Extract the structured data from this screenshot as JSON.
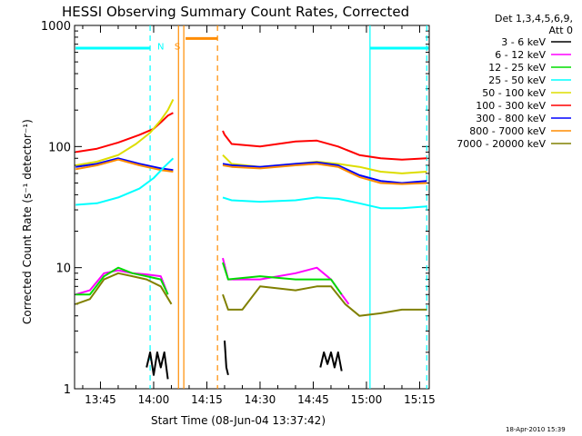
{
  "chart_data": {
    "type": "line",
    "title": "HESSI Observing Summary Count Rates, Corrected",
    "xlabel": "Start Time (08-Jun-04 13:37:42)",
    "ylabel": "Corrected Count Rate (s⁻¹ detector⁻¹)",
    "x_tick_labels": [
      "13:45",
      "14:00",
      "14:15",
      "14:30",
      "14:45",
      "15:00",
      "15:15"
    ],
    "x_ticks_min": [
      45,
      60,
      75,
      90,
      105,
      120,
      135
    ],
    "xlim_min": [
      37.7,
      137.7
    ],
    "y_scale": "log",
    "ylim": [
      1,
      1000
    ],
    "y_tick_labels": [
      "1",
      "10",
      "100",
      "1000"
    ],
    "y_ticks": [
      1,
      10,
      100,
      1000
    ],
    "legend": {
      "placement": "right",
      "header": [
        "Det 1,3,4,5,6,9,",
        "Att 0"
      ],
      "entries": [
        {
          "label": "3 - 6 keV",
          "color": "#000000"
        },
        {
          "label": "6 - 12 keV",
          "color": "#ff00ff"
        },
        {
          "label": "12 - 25 keV",
          "color": "#00dd00"
        },
        {
          "label": "25 - 50 keV",
          "color": "#00ffff"
        },
        {
          "label": "50 - 100 keV",
          "color": "#dddd00"
        },
        {
          "label": "100 - 300 keV",
          "color": "#ff0000"
        },
        {
          "label": "300 - 800 keV",
          "color": "#0000ff"
        },
        {
          "label": "800 - 7000 keV",
          "color": "#ff8c00"
        },
        {
          "label": "7000 - 20000 keV",
          "color": "#808000"
        }
      ]
    },
    "series": [
      {
        "color": "#ff0000",
        "segments": [
          [
            [
              38,
              90
            ],
            [
              44,
              96
            ],
            [
              50,
              108
            ],
            [
              56,
              125
            ],
            [
              60,
              140
            ],
            [
              62,
              158
            ],
            [
              64,
              180
            ],
            [
              65.5,
              190
            ]
          ],
          [
            [
              79.5,
              135
            ],
            [
              80,
              125
            ],
            [
              82,
              105
            ],
            [
              90,
              100
            ],
            [
              100,
              110
            ],
            [
              106,
              112
            ],
            [
              112,
              100
            ],
            [
              118,
              85
            ],
            [
              124,
              80
            ],
            [
              130,
              78
            ],
            [
              137,
              80
            ]
          ]
        ]
      },
      {
        "color": "#dddd00",
        "segments": [
          [
            [
              38,
              70
            ],
            [
              44,
              75
            ],
            [
              50,
              85
            ],
            [
              55,
              105
            ],
            [
              59,
              130
            ],
            [
              62,
              165
            ],
            [
              64,
              200
            ],
            [
              65.5,
              245
            ]
          ],
          [
            [
              79.5,
              85
            ],
            [
              82,
              72
            ],
            [
              90,
              68
            ],
            [
              100,
              72
            ],
            [
              106,
              75
            ],
            [
              112,
              72
            ],
            [
              118,
              68
            ],
            [
              124,
              62
            ],
            [
              130,
              60
            ],
            [
              137,
              62
            ]
          ]
        ]
      },
      {
        "color": "#0000ff",
        "segments": [
          [
            [
              38,
              68
            ],
            [
              44,
              72
            ],
            [
              50,
              80
            ],
            [
              56,
              72
            ],
            [
              62,
              66
            ],
            [
              65.5,
              64
            ]
          ],
          [
            [
              79.5,
              72
            ],
            [
              82,
              70
            ],
            [
              90,
              68
            ],
            [
              100,
              72
            ],
            [
              106,
              74
            ],
            [
              112,
              70
            ],
            [
              118,
              58
            ],
            [
              124,
              52
            ],
            [
              130,
              50
            ],
            [
              137,
              52
            ]
          ]
        ]
      },
      {
        "color": "#ff8c00",
        "segments": [
          [
            [
              38,
              65
            ],
            [
              44,
              70
            ],
            [
              50,
              78
            ],
            [
              56,
              70
            ],
            [
              62,
              64
            ],
            [
              65.5,
              62
            ]
          ],
          [
            [
              79.5,
              70
            ],
            [
              82,
              68
            ],
            [
              90,
              66
            ],
            [
              100,
              70
            ],
            [
              106,
              72
            ],
            [
              112,
              68
            ],
            [
              118,
              56
            ],
            [
              124,
              50
            ],
            [
              130,
              49
            ],
            [
              137,
              50
            ]
          ]
        ]
      },
      {
        "color": "#00ffff",
        "segments": [
          [
            [
              38,
              33
            ],
            [
              44,
              34
            ],
            [
              50,
              38
            ],
            [
              56,
              45
            ],
            [
              60,
              55
            ],
            [
              63,
              68
            ],
            [
              65.5,
              80
            ]
          ],
          [
            [
              79.5,
              38
            ],
            [
              82,
              36
            ],
            [
              90,
              35
            ],
            [
              100,
              36
            ],
            [
              106,
              38
            ],
            [
              112,
              37
            ],
            [
              118,
              34
            ],
            [
              124,
              31
            ],
            [
              130,
              31
            ],
            [
              137,
              32
            ]
          ]
        ]
      },
      {
        "color": "#ff00ff",
        "segments": [
          [
            [
              38,
              6
            ],
            [
              42,
              6.5
            ],
            [
              46,
              9
            ],
            [
              50,
              9.5
            ],
            [
              54,
              9
            ],
            [
              58,
              8.8
            ],
            [
              62,
              8.5
            ],
            [
              64,
              6
            ]
          ],
          [
            [
              79.5,
              12
            ],
            [
              81,
              8
            ],
            [
              90,
              8
            ],
            [
              100,
              9
            ],
            [
              106,
              10
            ],
            [
              110,
              8
            ],
            [
              113,
              6
            ],
            [
              115,
              5
            ]
          ]
        ]
      },
      {
        "color": "#00dd00",
        "segments": [
          [
            [
              38,
              6
            ],
            [
              42,
              6
            ],
            [
              46,
              8.5
            ],
            [
              50,
              10
            ],
            [
              54,
              9
            ],
            [
              58,
              8.5
            ],
            [
              62,
              8
            ],
            [
              64,
              6
            ]
          ],
          [
            [
              79.5,
              11
            ],
            [
              81,
              8
            ],
            [
              90,
              8.5
            ],
            [
              100,
              8
            ],
            [
              106,
              8
            ],
            [
              110,
              8
            ],
            [
              113,
              6
            ]
          ]
        ]
      },
      {
        "color": "#808000",
        "segments": [
          [
            [
              38,
              5
            ],
            [
              42,
              5.5
            ],
            [
              46,
              8
            ],
            [
              50,
              9
            ],
            [
              54,
              8.5
            ],
            [
              58,
              8
            ],
            [
              62,
              7
            ],
            [
              65,
              5
            ]
          ],
          [
            [
              79.5,
              6
            ],
            [
              81,
              4.5
            ],
            [
              85,
              4.5
            ],
            [
              90,
              7
            ],
            [
              100,
              6.5
            ],
            [
              106,
              7
            ],
            [
              110,
              7
            ],
            [
              114,
              5
            ],
            [
              118,
              4
            ],
            [
              124,
              4.2
            ],
            [
              130,
              4.5
            ],
            [
              137,
              4.5
            ]
          ]
        ]
      },
      {
        "color": "#000000",
        "segments": [
          [
            [
              58,
              1.5
            ],
            [
              59,
              2
            ],
            [
              60,
              1.3
            ],
            [
              61,
              2
            ],
            [
              62,
              1.5
            ],
            [
              63,
              2
            ],
            [
              64,
              1.2
            ]
          ],
          [
            [
              80,
              2.5
            ],
            [
              80.5,
              1.5
            ],
            [
              81,
              1.3
            ]
          ],
          [
            [
              107,
              1.5
            ],
            [
              108,
              2
            ],
            [
              109,
              1.6
            ],
            [
              110,
              2
            ],
            [
              111,
              1.5
            ],
            [
              112,
              2
            ],
            [
              113,
              1.4
            ]
          ]
        ]
      }
    ],
    "annotations": [
      {
        "text": "N",
        "color": "#00ffff",
        "x_min": 62
      },
      {
        "text": "S",
        "color": "#ff8c00",
        "x_min": 66.7
      }
    ],
    "flag_bars": [
      {
        "color": "#00ffff",
        "x_start": 38,
        "x_end": 59,
        "y": 650
      },
      {
        "color": "#ff8c00",
        "x_start": 69,
        "x_end": 78,
        "y": 780
      },
      {
        "color": "#00ffff",
        "x_start": 121,
        "x_end": 137.5,
        "y": 650
      }
    ],
    "vertical_lines": [
      {
        "color": "#00ffff",
        "x": 59,
        "dashed": true
      },
      {
        "color": "#ff8c00",
        "x": 67,
        "dashed": false
      },
      {
        "color": "#ff8c00",
        "x": 68.5,
        "dashed": false
      },
      {
        "color": "#ff8c00",
        "x": 78,
        "dashed": true
      },
      {
        "color": "#00ffff",
        "x": 121,
        "dashed": false
      },
      {
        "color": "#00ffff",
        "x": 137,
        "dashed": true
      }
    ]
  },
  "footer": {
    "timestamp": "18-Apr-2010 15:39"
  }
}
